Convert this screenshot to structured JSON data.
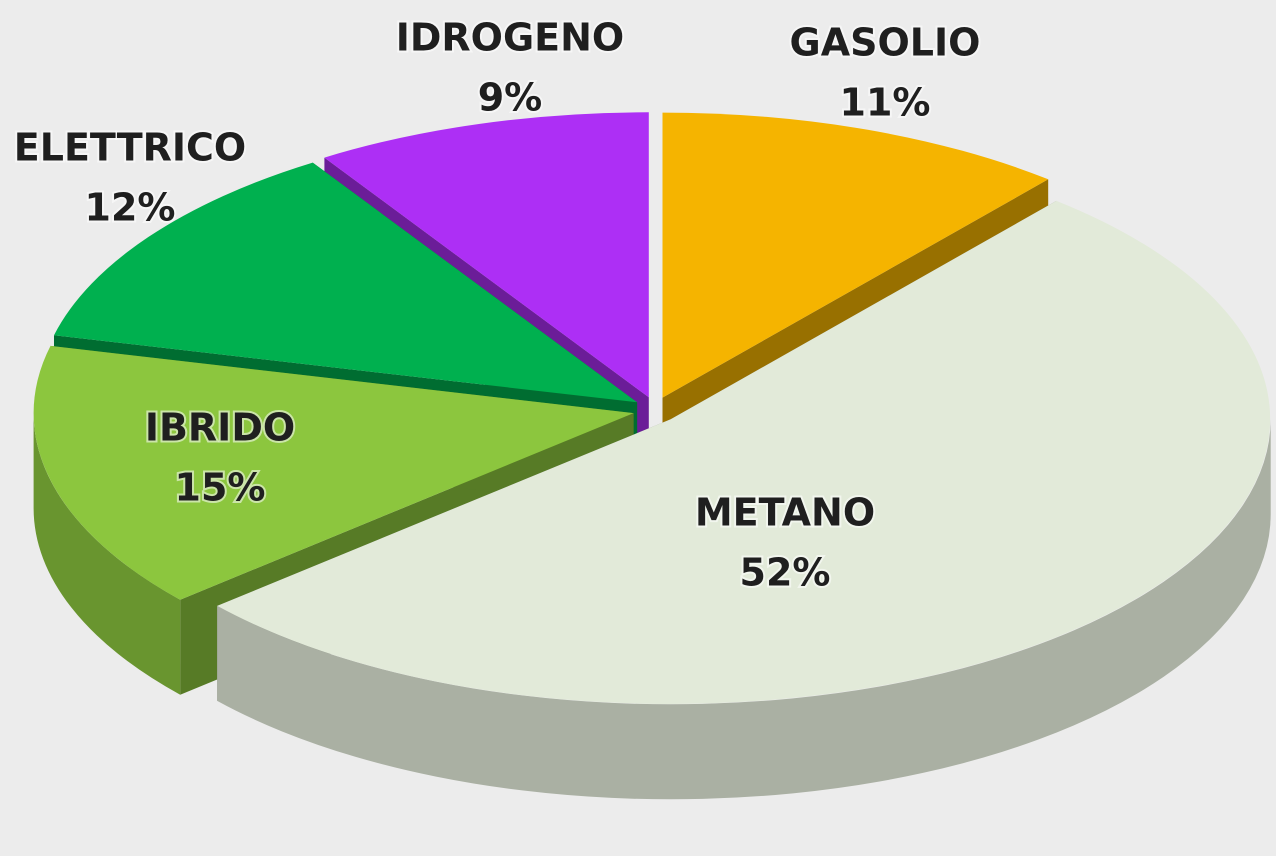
{
  "chart_data": {
    "type": "pie",
    "categories": [
      "GASOLIO",
      "METANO",
      "IBRIDO",
      "ELETTRICO",
      "IDROGENO"
    ],
    "values": [
      11,
      52,
      15,
      12,
      9
    ],
    "value_labels": [
      "11%",
      "52%",
      "15%",
      "12%",
      "9%"
    ],
    "colors": [
      "#f5b400",
      "#e2ead9",
      "#8cc63e",
      "#00b04f",
      "#ad2ff5"
    ]
  }
}
